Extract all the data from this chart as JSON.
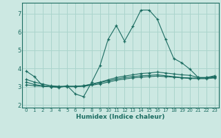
{
  "xlabel": "Humidex (Indice chaleur)",
  "bg_color": "#cce8e2",
  "grid_color": "#aad4cc",
  "line_color": "#1a6b60",
  "xlim": [
    -0.5,
    23.5
  ],
  "ylim": [
    1.85,
    7.6
  ],
  "yticks": [
    2,
    3,
    4,
    5,
    6,
    7
  ],
  "xticks": [
    0,
    1,
    2,
    3,
    4,
    5,
    6,
    7,
    8,
    9,
    10,
    11,
    12,
    13,
    14,
    15,
    16,
    17,
    18,
    19,
    20,
    21,
    22,
    23
  ],
  "lines": [
    {
      "x": [
        0,
        1,
        2,
        3,
        4,
        5,
        6,
        7,
        8,
        9,
        10,
        11,
        12,
        13,
        14,
        15,
        16,
        17,
        18,
        19,
        20,
        21,
        22,
        23
      ],
      "y": [
        3.85,
        3.55,
        3.05,
        3.0,
        2.95,
        3.05,
        2.6,
        2.45,
        3.25,
        4.15,
        5.6,
        6.35,
        5.5,
        6.3,
        7.2,
        7.2,
        6.7,
        5.6,
        4.55,
        4.3,
        3.95,
        3.5,
        3.5,
        3.6
      ]
    },
    {
      "x": [
        0,
        1,
        2,
        3,
        4,
        5,
        6,
        7,
        8,
        9,
        10,
        11,
        12,
        13,
        14,
        15,
        16,
        17,
        18,
        19,
        20,
        21,
        22,
        23
      ],
      "y": [
        3.4,
        3.25,
        3.15,
        3.05,
        3.02,
        3.02,
        3.02,
        3.05,
        3.15,
        3.25,
        3.38,
        3.5,
        3.58,
        3.65,
        3.72,
        3.75,
        3.8,
        3.75,
        3.7,
        3.65,
        3.62,
        3.5,
        3.5,
        3.55
      ]
    },
    {
      "x": [
        0,
        1,
        2,
        3,
        4,
        5,
        6,
        7,
        8,
        9,
        10,
        11,
        12,
        13,
        14,
        15,
        16,
        17,
        18,
        19,
        20,
        21,
        22,
        23
      ],
      "y": [
        3.25,
        3.12,
        3.05,
        3.0,
        3.0,
        3.02,
        3.02,
        3.05,
        3.12,
        3.22,
        3.32,
        3.42,
        3.5,
        3.55,
        3.6,
        3.62,
        3.65,
        3.6,
        3.55,
        3.5,
        3.48,
        3.47,
        3.47,
        3.5
      ]
    },
    {
      "x": [
        0,
        1,
        2,
        3,
        4,
        5,
        6,
        7,
        8,
        9,
        10,
        11,
        12,
        13,
        14,
        15,
        16,
        17,
        18,
        19,
        20,
        21,
        22,
        23
      ],
      "y": [
        3.1,
        3.05,
        3.02,
        3.0,
        3.0,
        3.0,
        3.0,
        3.02,
        3.08,
        3.15,
        3.25,
        3.35,
        3.42,
        3.48,
        3.52,
        3.55,
        3.58,
        3.55,
        3.52,
        3.48,
        3.45,
        3.44,
        3.44,
        3.48
      ]
    }
  ]
}
